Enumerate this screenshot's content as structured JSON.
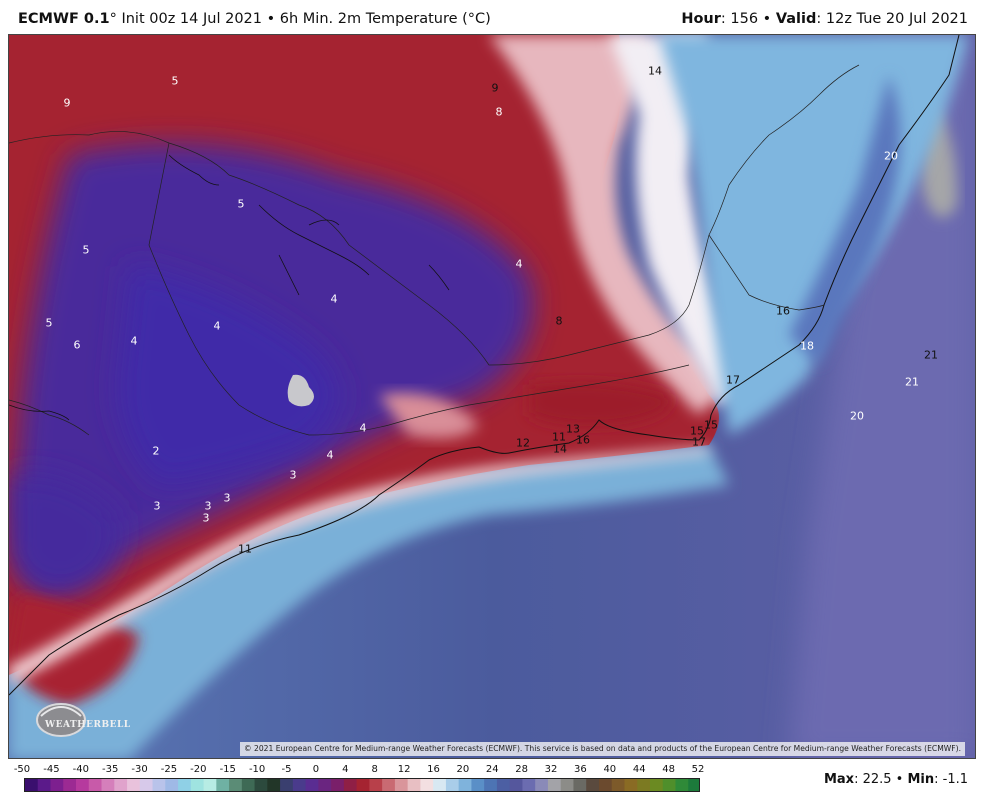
{
  "header": {
    "model": "ECMWF 0.1",
    "init_text": "° Init 00z 14 Jul 2021 • 6h Min. 2m Temperature (°C)",
    "hour_label": "Hour",
    "hour_value": ": 156 • ",
    "valid_label": "Valid",
    "valid_value": ": 12z Tue 20 Jul 2021"
  },
  "map": {
    "labels": [
      {
        "text": "9",
        "tone": "white"
      },
      {
        "text": "5",
        "tone": "white"
      },
      {
        "text": "9",
        "tone": "black"
      },
      {
        "text": "8",
        "tone": "white"
      },
      {
        "text": "14",
        "tone": "black"
      },
      {
        "text": "20",
        "tone": "white"
      },
      {
        "text": "5",
        "tone": "white"
      },
      {
        "text": "5",
        "tone": "white"
      },
      {
        "text": "4",
        "tone": "white"
      },
      {
        "text": "4",
        "tone": "white"
      },
      {
        "text": "8",
        "tone": "black"
      },
      {
        "text": "16",
        "tone": "black"
      },
      {
        "text": "5",
        "tone": "white"
      },
      {
        "text": "6",
        "tone": "white"
      },
      {
        "text": "4",
        "tone": "white"
      },
      {
        "text": "4",
        "tone": "white"
      },
      {
        "text": "18",
        "tone": "white"
      },
      {
        "text": "21",
        "tone": "black"
      },
      {
        "text": "17",
        "tone": "black"
      },
      {
        "text": "21",
        "tone": "white"
      },
      {
        "text": "20",
        "tone": "white"
      },
      {
        "text": "4",
        "tone": "white"
      },
      {
        "text": "13",
        "tone": "black"
      },
      {
        "text": "15",
        "tone": "black"
      },
      {
        "text": "15",
        "tone": "black"
      },
      {
        "text": "17",
        "tone": "black"
      },
      {
        "text": "11",
        "tone": "black"
      },
      {
        "text": "12",
        "tone": "black"
      },
      {
        "text": "16",
        "tone": "black"
      },
      {
        "text": "14",
        "tone": "black"
      },
      {
        "text": "2",
        "tone": "white"
      },
      {
        "text": "4",
        "tone": "white"
      },
      {
        "text": "3",
        "tone": "white"
      },
      {
        "text": "3",
        "tone": "white"
      },
      {
        "text": "3",
        "tone": "white"
      },
      {
        "text": "3",
        "tone": "white"
      },
      {
        "text": "3",
        "tone": "white"
      },
      {
        "text": "11",
        "tone": "black"
      }
    ],
    "copyright": "© 2021 European Centre for Medium-range Weather Forecasts (ECMWF). This service is based on data and products of the European Centre for Medium-range Weather Forecasts (ECMWF).",
    "logo_text": "WEATHERBELL"
  },
  "legend": {
    "ticks": [
      "-50",
      "-45",
      "-40",
      "-35",
      "-30",
      "-25",
      "-20",
      "-15",
      "-10",
      "-5",
      "0",
      "4",
      "8",
      "12",
      "16",
      "20",
      "24",
      "28",
      "32",
      "36",
      "40",
      "44",
      "48",
      "52"
    ],
    "max_label": "Max",
    "max_value": ": 22.5 • ",
    "min_label": "Min",
    "min_value": ": -1.1"
  },
  "colors": {
    "land_warm": "#a3222f",
    "land_cold": "#4a2c9a",
    "coast_light": "#f2d6d8",
    "ocean": "#4d5f9e",
    "ocean_light": "#7fb3d9",
    "ocean_far": "#6b6cb0"
  }
}
